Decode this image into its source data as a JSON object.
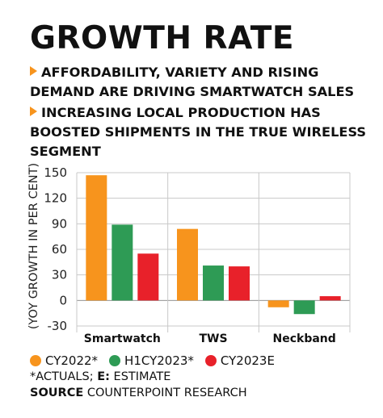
{
  "title": "GROWTH RATE",
  "bullets": [
    "AFFORDABILITY, VARIETY AND RISING DEMAND ARE DRIVING SMARTWATCH SALES",
    "INCREASING LOCAL PRODUCTION HAS BOOSTED SHIPMENTS IN THE TRUE WIRELESS SEGMENT"
  ],
  "notes": {
    "actuals": "*ACTUALS;",
    "estimate_key": "E:",
    "estimate_text": "ESTIMATE",
    "source_key": "SOURCE",
    "source_text": "COUNTERPOINT RESEARCH"
  },
  "colors": {
    "bullet_arrow": "#f7941d",
    "gridline": "#c8c8c8"
  },
  "chart_data": {
    "type": "bar",
    "categories": [
      "Smartwatch",
      "TWS",
      "Neckband"
    ],
    "series": [
      {
        "name": "CY2022*",
        "color": "#f7941d",
        "values": [
          147,
          84,
          -8
        ]
      },
      {
        "name": "H1CY2023*",
        "color": "#2e9b55",
        "values": [
          89,
          41,
          -16
        ]
      },
      {
        "name": "CY2023E",
        "color": "#e8212a",
        "values": [
          55,
          40,
          5
        ]
      }
    ],
    "ylabel": "(YOY GROWTH IN PER CENT)",
    "ylim": [
      -30,
      150
    ],
    "yticks": [
      -30,
      0,
      30,
      60,
      90,
      120,
      150
    ],
    "grid": true,
    "legend": "bottom"
  }
}
